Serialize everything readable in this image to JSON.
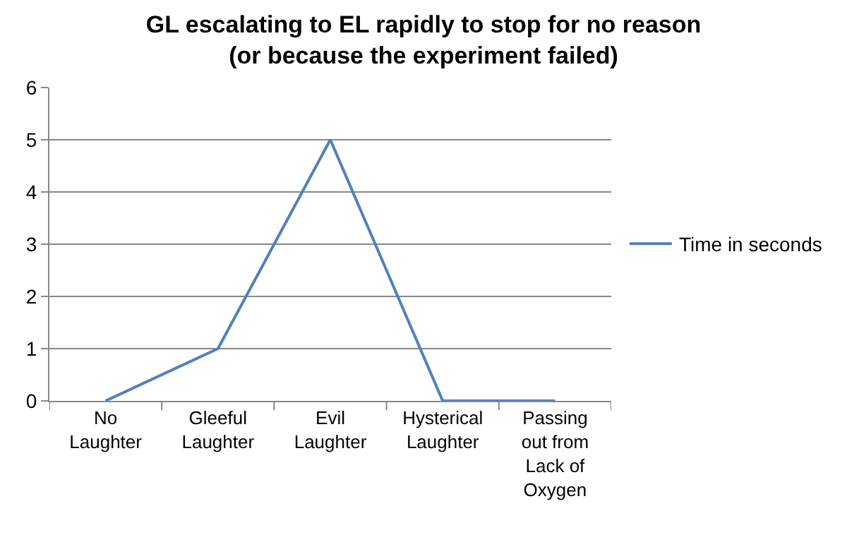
{
  "chart_data": {
    "type": "line",
    "title": "GL escalating to EL rapidly to stop for no reason\n(or because the experiment failed)",
    "categories": [
      "No Laughter",
      "Gleeful Laughter",
      "Evil Laughter",
      "Hysterical Laughter",
      "Passing out from Lack of Oxygen"
    ],
    "series": [
      {
        "name": "Time in seconds",
        "color": "#4f81bd",
        "values": [
          0,
          1,
          5,
          0,
          0
        ]
      }
    ],
    "ylim": [
      0,
      6
    ],
    "yticks": [
      0,
      1,
      2,
      3,
      4,
      5,
      6
    ],
    "grid": "y",
    "legend": "right",
    "marker": "none",
    "line_style": "solid"
  }
}
